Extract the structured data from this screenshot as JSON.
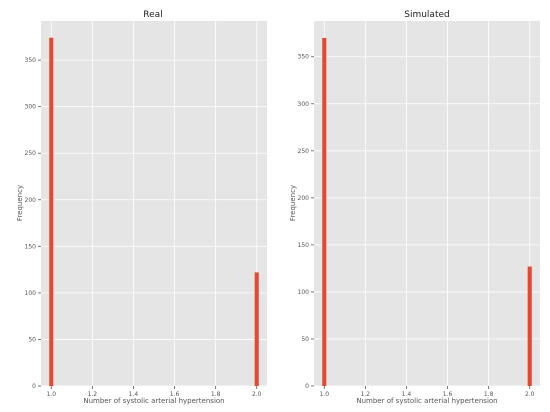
{
  "colors": {
    "background": "#ffffff",
    "panel": "#e5e5e5",
    "bar": "#e24a33",
    "grid": "#ffffff"
  },
  "chart_data": [
    {
      "type": "bar",
      "title": "Real",
      "xlabel": "Number of systolic arterial hypertension",
      "ylabel": "Frequency",
      "x": [
        1.0,
        2.0
      ],
      "values": [
        374,
        122
      ],
      "xlim": [
        0.95,
        2.05
      ],
      "ylim": [
        0,
        392
      ],
      "xticks": [
        1.0,
        1.2,
        1.4,
        1.6,
        1.8,
        2.0
      ],
      "xtick_labels": [
        "1.0",
        "1.2",
        "1.4",
        "1.6",
        "1.8",
        "2.0"
      ],
      "yticks": [
        0,
        50,
        100,
        150,
        200,
        250,
        300,
        350
      ],
      "ytick_labels": [
        "0",
        "50",
        "100",
        "150",
        "200",
        "250",
        "300",
        "350"
      ],
      "bar_width": 0.02,
      "grid": true
    },
    {
      "type": "bar",
      "title": "Simulated",
      "xlabel": "Number of systolic arterial hypertension",
      "ylabel": "Frequency",
      "x": [
        1.0,
        2.0
      ],
      "values": [
        370,
        127
      ],
      "xlim": [
        0.95,
        2.05
      ],
      "ylim": [
        0,
        388
      ],
      "xticks": [
        1.0,
        1.2,
        1.4,
        1.6,
        1.8,
        2.0
      ],
      "xtick_labels": [
        "1.0",
        "1.2",
        "1.4",
        "1.6",
        "1.8",
        "2.0"
      ],
      "yticks": [
        0,
        50,
        100,
        150,
        200,
        250,
        300,
        350
      ],
      "ytick_labels": [
        "0",
        "50",
        "100",
        "150",
        "200",
        "250",
        "300",
        "350"
      ],
      "bar_width": 0.02,
      "grid": true
    }
  ]
}
